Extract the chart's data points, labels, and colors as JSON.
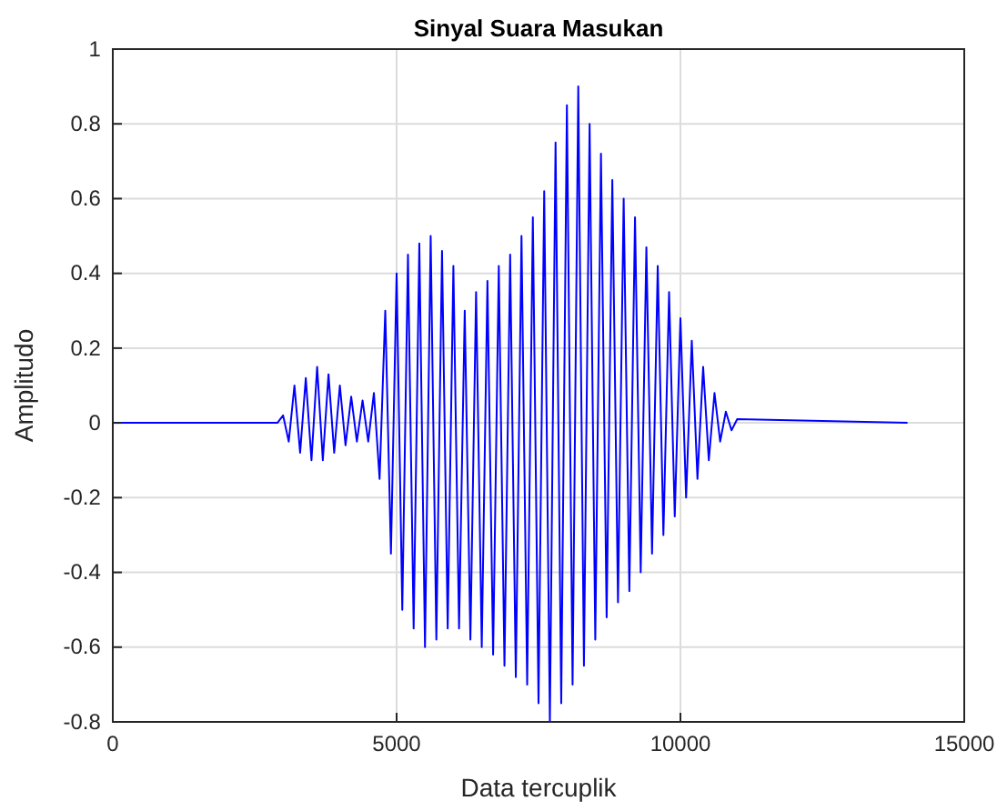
{
  "chart_data": {
    "type": "line",
    "title": "Sinyal Suara Masukan",
    "xlabel": "Data tercuplik",
    "ylabel": "Amplitudo",
    "x": [
      0,
      2900,
      3000,
      3100,
      3200,
      3300,
      3400,
      3500,
      3600,
      3700,
      3800,
      3900,
      4000,
      4100,
      4200,
      4300,
      4400,
      4500,
      4600,
      4700,
      4800,
      4900,
      5000,
      5100,
      5200,
      5300,
      5400,
      5500,
      5600,
      5700,
      5800,
      5900,
      6000,
      6100,
      6200,
      6300,
      6400,
      6500,
      6600,
      6700,
      6800,
      6900,
      7000,
      7100,
      7200,
      7300,
      7400,
      7500,
      7600,
      7700,
      7800,
      7900,
      8000,
      8100,
      8200,
      8300,
      8400,
      8500,
      8600,
      8700,
      8800,
      8900,
      9000,
      9100,
      9200,
      9300,
      9400,
      9500,
      9600,
      9700,
      9800,
      9900,
      10000,
      10100,
      10200,
      10300,
      10400,
      10500,
      10600,
      10700,
      10800,
      10900,
      11000,
      14000
    ],
    "series": [
      {
        "color": "#0000ff",
        "values": [
          0,
          0,
          0.02,
          -0.05,
          0.1,
          -0.08,
          0.12,
          -0.1,
          0.15,
          -0.1,
          0.13,
          -0.08,
          0.1,
          -0.06,
          0.07,
          -0.05,
          0.06,
          -0.05,
          0.08,
          -0.15,
          0.3,
          -0.35,
          0.4,
          -0.5,
          0.45,
          -0.55,
          0.48,
          -0.6,
          0.5,
          -0.58,
          0.46,
          -0.55,
          0.42,
          -0.55,
          0.3,
          -0.58,
          0.35,
          -0.6,
          0.38,
          -0.62,
          0.42,
          -0.65,
          0.45,
          -0.68,
          0.5,
          -0.7,
          0.55,
          -0.75,
          0.62,
          -0.8,
          0.75,
          -0.75,
          0.85,
          -0.7,
          0.9,
          -0.65,
          0.8,
          -0.58,
          0.72,
          -0.52,
          0.65,
          -0.48,
          0.6,
          -0.45,
          0.55,
          -0.4,
          0.47,
          -0.35,
          0.42,
          -0.3,
          0.35,
          -0.25,
          0.28,
          -0.2,
          0.22,
          -0.15,
          0.15,
          -0.1,
          0.08,
          -0.05,
          0.03,
          -0.02,
          0.01,
          0
        ]
      }
    ],
    "xlim": [
      0,
      15000
    ],
    "xticks": [
      0,
      5000,
      10000,
      15000
    ],
    "ylim": [
      -0.8,
      1
    ],
    "yticks": [
      -0.8,
      -0.6,
      -0.4,
      -0.2,
      0,
      0.2,
      0.4,
      0.6,
      0.8,
      1
    ],
    "grid": true
  }
}
